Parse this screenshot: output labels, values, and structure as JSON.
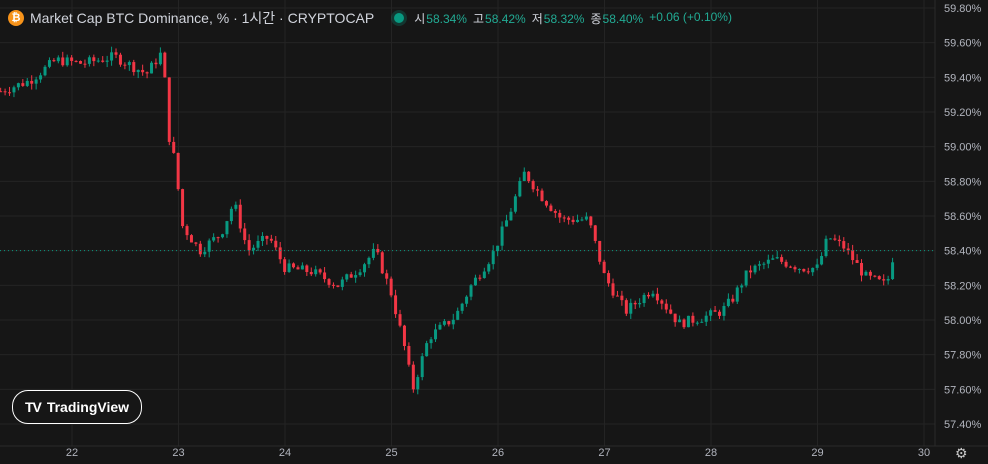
{
  "header": {
    "coin_icon": "bitcoin-icon",
    "coin_glyph": "₿",
    "title": "Market Cap BTC Dominance, % · 1시간 · CRYPTOCAP",
    "status_color": "#089981",
    "open_label": "시",
    "open_value": "58.34%",
    "high_label": "고",
    "high_value": "58.42%",
    "low_label": "저",
    "low_value": "58.32%",
    "close_label": "종",
    "close_value": "58.40%",
    "change": "+0.06 (+0.10%)"
  },
  "logo": {
    "icon": "tradingview-logo-icon",
    "glyph": "TV",
    "text": "TradingView"
  },
  "settings_icon": "gear-icon",
  "colors": {
    "up": "#089981",
    "down": "#f23645",
    "background": "#161616",
    "grid": "#242424",
    "axis_text": "#b2b5be",
    "price_label_bg": "#089981"
  },
  "chart_data": {
    "type": "candlestick",
    "title": "Market Cap BTC Dominance, %",
    "interval": "1시간",
    "source": "CRYPTOCAP",
    "x_ticks": [
      "22",
      "23",
      "24",
      "25",
      "26",
      "27",
      "28",
      "29",
      "30"
    ],
    "y_ticks": [
      "59.80%",
      "59.60%",
      "59.40%",
      "59.20%",
      "59.00%",
      "58.80%",
      "58.60%",
      "58.40%",
      "58.20%",
      "58.00%",
      "57.80%",
      "57.60%",
      "57.40%"
    ],
    "ylim": [
      57.35,
      59.85
    ],
    "xlim_days": [
      21.33,
      30.05
    ],
    "last_price": 58.4,
    "last_price_label": "58.40%",
    "waypoints": [
      [
        21.33,
        59.32
      ],
      [
        21.6,
        59.38
      ],
      [
        21.85,
        59.5
      ],
      [
        22.1,
        59.48
      ],
      [
        22.4,
        59.52
      ],
      [
        22.7,
        59.42
      ],
      [
        22.85,
        59.55
      ],
      [
        22.92,
        59.0
      ],
      [
        22.97,
        58.92
      ],
      [
        23.03,
        58.55
      ],
      [
        23.2,
        58.4
      ],
      [
        23.4,
        58.5
      ],
      [
        23.52,
        58.68
      ],
      [
        23.65,
        58.4
      ],
      [
        23.85,
        58.48
      ],
      [
        24.0,
        58.3
      ],
      [
        24.25,
        58.28
      ],
      [
        24.5,
        58.2
      ],
      [
        24.7,
        58.3
      ],
      [
        24.85,
        58.4
      ],
      [
        25.0,
        58.15
      ],
      [
        25.12,
        57.85
      ],
      [
        25.2,
        57.6
      ],
      [
        25.35,
        57.9
      ],
      [
        25.6,
        58.02
      ],
      [
        25.75,
        58.2
      ],
      [
        25.95,
        58.38
      ],
      [
        26.1,
        58.6
      ],
      [
        26.25,
        58.85
      ],
      [
        26.4,
        58.72
      ],
      [
        26.6,
        58.58
      ],
      [
        26.85,
        58.58
      ],
      [
        27.0,
        58.25
      ],
      [
        27.2,
        58.05
      ],
      [
        27.45,
        58.18
      ],
      [
        27.55,
        58.1
      ],
      [
        27.7,
        57.98
      ],
      [
        27.95,
        58.02
      ],
      [
        28.1,
        58.05
      ],
      [
        28.2,
        58.12
      ],
      [
        28.35,
        58.28
      ],
      [
        28.6,
        58.35
      ],
      [
        28.85,
        58.3
      ],
      [
        29.0,
        58.3
      ],
      [
        29.1,
        58.48
      ],
      [
        29.25,
        58.42
      ],
      [
        29.45,
        58.25
      ],
      [
        29.65,
        58.2
      ],
      [
        29.72,
        58.4
      ]
    ],
    "open": 58.34,
    "high": 58.42,
    "low": 58.32,
    "close": 58.4,
    "change": 0.06,
    "change_pct": 0.1
  }
}
